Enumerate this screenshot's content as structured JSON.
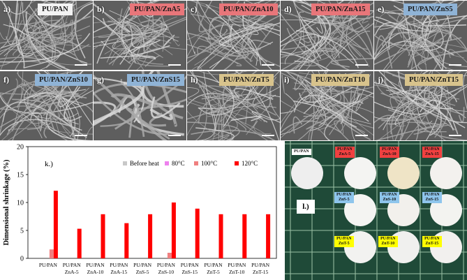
{
  "sem_panels": [
    {
      "letter": "a)",
      "label": "PU/PAN",
      "label_color": "#f2f2f2"
    },
    {
      "letter": "b)",
      "label": "PU/PAN/ZnA5",
      "label_color": "#e8767a"
    },
    {
      "letter": "c)",
      "label": "PU/PAN/ZnA10",
      "label_color": "#e8767a"
    },
    {
      "letter": "d)",
      "label": "PU/PAN/ZnA15",
      "label_color": "#e8767a"
    },
    {
      "letter": "e)",
      "label": "PU/PAN/ZnS5",
      "label_color": "#8fb3d6"
    },
    {
      "letter": "f)",
      "label": "PU/PAN/ZnS10",
      "label_color": "#8fb3d6"
    },
    {
      "letter": "g)",
      "label": "PU/PAN/ZnS15",
      "label_color": "#8fb3d6"
    },
    {
      "letter": "h)",
      "label": "PU/PAN/ZnT5",
      "label_color": "#d8c38c"
    },
    {
      "letter": "i)",
      "label": "PU/PAN/ZnT10",
      "label_color": "#d8c38c"
    },
    {
      "letter": "j)",
      "label": "PU/PAN/ZnT15",
      "label_color": "#d8c38c"
    }
  ],
  "chart_data": {
    "type": "bar",
    "panel_letter": "k.)",
    "ylabel": "Dimensional shrinkage (%)",
    "ylim": [
      0,
      20
    ],
    "yticks": [
      "0",
      "5",
      "10",
      "15",
      "20"
    ],
    "legend_position": "top-right",
    "categories": [
      "PU/PAN",
      "PU/PAN\nZnA-5",
      "PU/PAN\nZnA-10",
      "PU/PAN\nZnA-15",
      "PU/PAN\nZnS-5",
      "PU/PAN\nZnS-10",
      "PU/PAN\nZnS-15",
      "PU/PAN\nZnT-5",
      "PU/PAN\nZnT-10",
      "PU/PAN\nZnT-15"
    ],
    "series": [
      {
        "name": "Before heat",
        "color": "#c8c8c8",
        "values": [
          0,
          0,
          0,
          0,
          0,
          0,
          0,
          0,
          0,
          0
        ]
      },
      {
        "name": "80°C",
        "color": "#ee82ee",
        "values": [
          0,
          0,
          0,
          0,
          0,
          0,
          0,
          0,
          0,
          0
        ]
      },
      {
        "name": "100°C",
        "color": "#f08080",
        "values": [
          1.6,
          0,
          0,
          0,
          0,
          1.0,
          0,
          0,
          0,
          0
        ]
      },
      {
        "name": "120°C",
        "color": "#ff0000",
        "values": [
          12.1,
          5.3,
          7.9,
          6.3,
          7.9,
          10.0,
          8.9,
          7.9,
          7.9,
          7.9
        ]
      }
    ]
  },
  "photo": {
    "letter": "l.)",
    "tags": [
      {
        "text": "PU/PAN",
        "color": "#ffffff"
      },
      {
        "text": "PU/PAN\nZnA-5",
        "color": "#f04040"
      },
      {
        "text": "PU/PAN\nZnA-10",
        "color": "#f04040"
      },
      {
        "text": "PU/PAN\nZnA-15",
        "color": "#f04040"
      },
      {
        "text": "PU/PAN\nZnS-5",
        "color": "#8ec5ec"
      },
      {
        "text": "PU/PAN\nZnS-10",
        "color": "#8ec5ec"
      },
      {
        "text": "PU/PAN\nZnS-15",
        "color": "#8ec5ec"
      },
      {
        "text": "PU/PAN\nZnT-5",
        "color": "#ffff00"
      },
      {
        "text": "PU/PAN\nZnT-10",
        "color": "#ffff00"
      },
      {
        "text": "PU/PAN\nZnT-15",
        "color": "#ffff00"
      }
    ]
  }
}
